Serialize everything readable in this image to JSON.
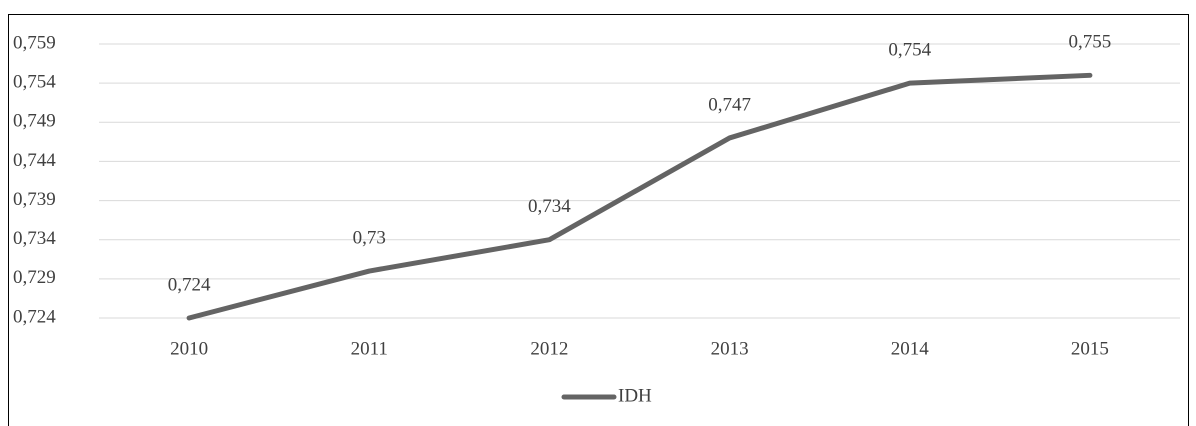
{
  "chart_data": {
    "type": "line",
    "categories": [
      "2010",
      "2011",
      "2012",
      "2013",
      "2014",
      "2015"
    ],
    "series": [
      {
        "name": "IDH",
        "color": "#646464",
        "values": [
          0.724,
          0.73,
          0.734,
          0.747,
          0.754,
          0.755
        ],
        "value_labels": [
          "0,724",
          "0,73",
          "0,734",
          "0,747",
          "0,754",
          "0,755"
        ]
      }
    ],
    "ylim": [
      0.724,
      0.759
    ],
    "yticks": [
      {
        "value": 0.724,
        "label": "0,724"
      },
      {
        "value": 0.729,
        "label": "0,729"
      },
      {
        "value": 0.734,
        "label": "0,734"
      },
      {
        "value": 0.739,
        "label": "0,739"
      },
      {
        "value": 0.744,
        "label": "0,744"
      },
      {
        "value": 0.749,
        "label": "0,749"
      },
      {
        "value": 0.754,
        "label": "0,754"
      },
      {
        "value": 0.759,
        "label": "0,759"
      }
    ],
    "grid": true,
    "legend": "bottom"
  }
}
